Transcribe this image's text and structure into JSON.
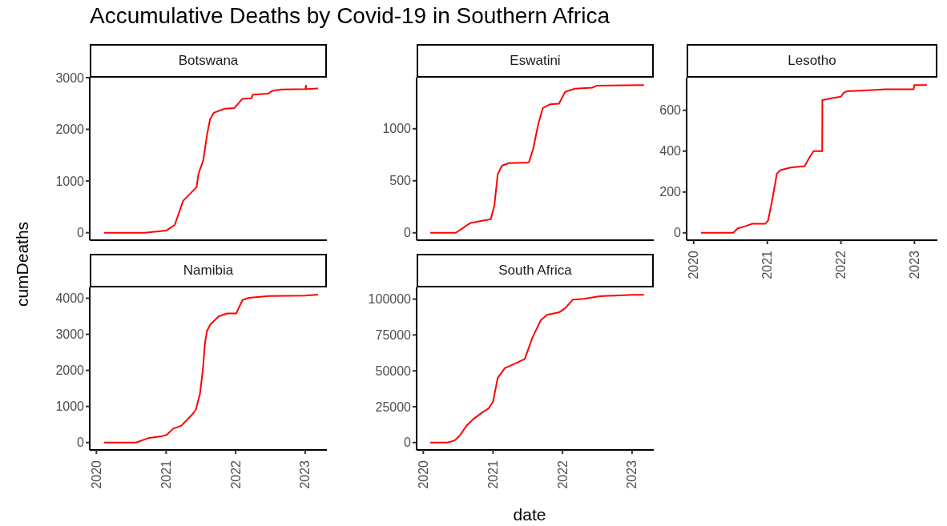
{
  "chart_data": [
    {
      "type": "line",
      "title": "Accumulative Deaths by Covid-19 in Southern Africa",
      "subtitle": "Botswana",
      "ylabel": "cumDeaths",
      "color": "#ff0000",
      "tick_labels": "y",
      "xlim": [
        "2019-11-27",
        "2023-04-25"
      ],
      "xticks": [
        "2020",
        "2021",
        "2022",
        "2023"
      ],
      "ylim": [
        -145,
        3000
      ],
      "yticks": [
        0,
        1000,
        2000,
        3000
      ],
      "x": [
        "2020-02-10",
        "2020-09-10",
        "2021-01-01",
        "2021-02-15",
        "2021-04-01",
        "2021-06-10",
        "2021-06-20",
        "2021-07-15",
        "2021-08-05",
        "2021-08-20",
        "2021-09-08",
        "2021-11-05",
        "2021-12-25",
        "2022-02-05",
        "2022-03-25",
        "2022-04-01",
        "2022-06-20",
        "2022-07-15",
        "2022-08-30",
        "2023-01-03",
        "2023-01-05",
        "2023-01-07",
        "2023-03-10"
      ],
      "values": [
        0,
        0,
        40,
        150,
        620,
        880,
        1140,
        1400,
        1920,
        2200,
        2320,
        2400,
        2410,
        2590,
        2600,
        2670,
        2690,
        2750,
        2770,
        2780,
        2850,
        2780,
        2790
      ]
    },
    {
      "type": "line",
      "subtitle": "Eswatini",
      "color": "#ff0000",
      "tick_labels": "y",
      "xlim": [
        "2019-11-27",
        "2023-04-25"
      ],
      "xticks": [
        "2020",
        "2021",
        "2022",
        "2023"
      ],
      "ylim": [
        -71,
        1491
      ],
      "yticks": [
        0,
        500,
        1000
      ],
      "x": [
        "2020-02-06",
        "2020-06-20",
        "2020-09-05",
        "2020-11-05",
        "2020-12-20",
        "2021-01-08",
        "2021-01-26",
        "2021-02-17",
        "2021-03-25",
        "2021-07-08",
        "2021-07-30",
        "2021-08-28",
        "2021-09-20",
        "2021-10-27",
        "2021-12-13",
        "2022-01-15",
        "2022-03-07",
        "2022-06-06",
        "2022-07-02",
        "2023-03-04"
      ],
      "values": [
        0,
        0,
        95,
        115,
        130,
        260,
        565,
        645,
        670,
        675,
        800,
        1055,
        1200,
        1235,
        1240,
        1355,
        1385,
        1395,
        1415,
        1420
      ]
    },
    {
      "type": "line",
      "subtitle": "Lesotho",
      "color": "#ff0000",
      "xlim": [
        "2019-11-27",
        "2023-04-25"
      ],
      "xticks": [
        "2020",
        "2021",
        "2022",
        "2023"
      ],
      "ylim": [
        -36,
        760
      ],
      "yticks": [
        0,
        200,
        400,
        600
      ],
      "x": [
        "2020-02-06",
        "2020-07-15",
        "2020-08-07",
        "2020-09-16",
        "2020-10-16",
        "2020-12-20",
        "2021-01-04",
        "2021-01-19",
        "2021-02-03",
        "2021-02-17",
        "2021-03-07",
        "2021-04-27",
        "2021-07-05",
        "2021-07-27",
        "2021-08-18",
        "2021-09-30",
        "2021-10-01",
        "2021-11-20",
        "2022-01-01",
        "2022-01-15",
        "2022-01-30",
        "2022-05-18",
        "2022-08-10",
        "2022-12-28",
        "2023-01-01",
        "2023-03-04"
      ],
      "values": [
        0,
        0,
        22,
        33,
        44,
        44,
        59,
        130,
        210,
        290,
        307,
        320,
        327,
        366,
        400,
        400,
        650,
        660,
        667,
        686,
        693,
        698,
        703,
        703,
        724,
        724
      ]
    },
    {
      "type": "line",
      "subtitle": "Namibia",
      "color": "#ff0000",
      "xlim": [
        "2019-11-27",
        "2023-04-25"
      ],
      "xticks": [
        "2020",
        "2021",
        "2022",
        "2023"
      ],
      "ylim": [
        -205,
        4300
      ],
      "yticks": [
        0,
        1000,
        2000,
        3000,
        4000
      ],
      "x": [
        "2020-02-10",
        "2020-07-27",
        "2020-10-04",
        "2020-12-05",
        "2021-01-04",
        "2021-02-06",
        "2021-03-22",
        "2021-05-15",
        "2021-06-06",
        "2021-06-28",
        "2021-07-13",
        "2021-07-24",
        "2021-08-04",
        "2021-08-22",
        "2021-10-05",
        "2021-11-18",
        "2022-01-04",
        "2022-02-06",
        "2022-03-11",
        "2022-06-25",
        "2023-01-01",
        "2023-03-10"
      ],
      "values": [
        0,
        0,
        130,
        170,
        210,
        380,
        470,
        760,
        910,
        1360,
        2020,
        2760,
        3100,
        3280,
        3500,
        3580,
        3580,
        3950,
        4010,
        4060,
        4070,
        4100
      ]
    },
    {
      "type": "line",
      "subtitle": "South Africa",
      "xlabel": "date",
      "color": "#ff0000",
      "xlim": [
        "2019-11-27",
        "2023-04-25"
      ],
      "xticks": [
        "2020",
        "2021",
        "2022",
        "2023"
      ],
      "ylim": [
        -5150,
        108150
      ],
      "yticks": [
        0,
        25000,
        50000,
        75000,
        100000
      ],
      "x": [
        "2020-02-06",
        "2020-05-08",
        "2020-06-14",
        "2020-07-09",
        "2020-08-15",
        "2020-09-20",
        "2020-11-06",
        "2020-12-09",
        "2021-01-01",
        "2021-01-26",
        "2021-03-04",
        "2021-04-20",
        "2021-06-17",
        "2021-07-27",
        "2021-09-09",
        "2021-10-12",
        "2021-12-16",
        "2022-01-15",
        "2022-02-24",
        "2022-04-23",
        "2022-07-16",
        "2023-01-01",
        "2023-03-04"
      ],
      "values": [
        0,
        0,
        1500,
        4600,
        11700,
        16400,
        21000,
        23800,
        28500,
        45200,
        51800,
        54600,
        58300,
        73200,
        85300,
        89000,
        90900,
        93700,
        99600,
        100200,
        102000,
        103000,
        103000
      ]
    }
  ]
}
